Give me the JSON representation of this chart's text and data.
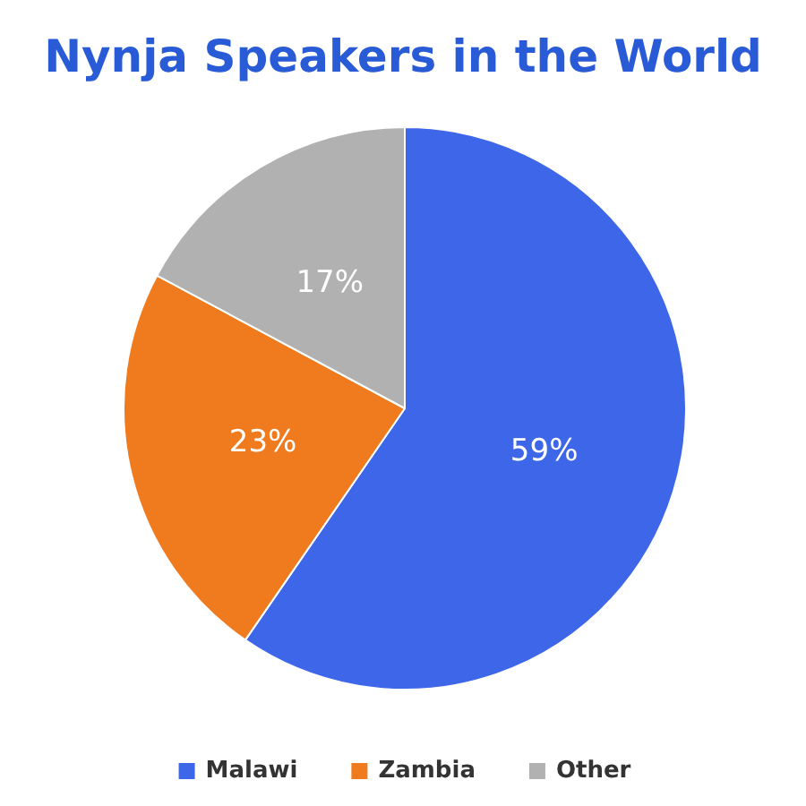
{
  "chart_data": {
    "type": "pie",
    "title": "Nynja Speakers in the World",
    "categories": [
      "Malawi",
      "Zambia",
      "Other"
    ],
    "values": [
      59,
      23,
      17
    ],
    "colors": [
      "#3e66e8",
      "#f07a1e",
      "#b1b1b1"
    ],
    "value_labels": [
      "59%",
      "23%",
      "17%"
    ],
    "legend": "bottom"
  }
}
